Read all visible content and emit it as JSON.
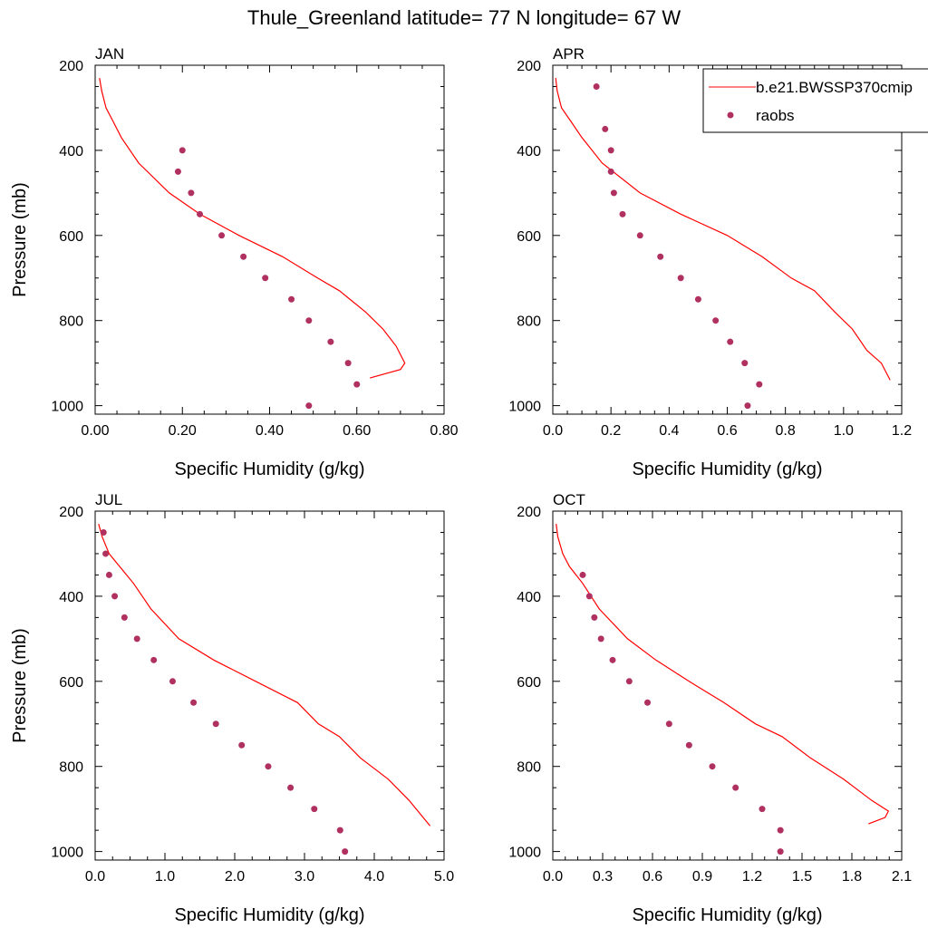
{
  "title": "Thule_Greenland  latitude= 77 N longitude= 67 W",
  "legend": {
    "line_label": "b.e21.BWSSP370cmip",
    "dot_label": "raobs"
  },
  "colors": {
    "line": "#ff0000",
    "dots": "#b03060",
    "axis": "#000000"
  },
  "chart_data": [
    {
      "type": "line",
      "panel": "JAN",
      "xlabel": "Specific Humidity (g/kg)",
      "ylabel": "Pressure (mb)",
      "xlim": [
        0,
        0.8
      ],
      "ylim": [
        1000,
        200
      ],
      "xticks": [
        "0.00",
        "0.20",
        "0.40",
        "0.60",
        "0.80"
      ],
      "yticks": [
        "200",
        "400",
        "600",
        "800",
        "1000"
      ],
      "series": [
        {
          "name": "b.e21.BWSSP370cmip",
          "x": [
            0.01,
            0.015,
            0.025,
            0.04,
            0.06,
            0.1,
            0.17,
            0.24,
            0.33,
            0.43,
            0.51,
            0.56,
            0.62,
            0.66,
            0.69,
            0.71,
            0.7,
            0.63
          ],
          "y": [
            230,
            260,
            300,
            330,
            370,
            430,
            500,
            550,
            600,
            650,
            700,
            730,
            780,
            820,
            860,
            900,
            915,
            935
          ]
        },
        {
          "name": "raobs",
          "x": [
            0.2,
            0.19,
            0.22,
            0.24,
            0.29,
            0.34,
            0.39,
            0.45,
            0.49,
            0.54,
            0.58,
            0.6,
            0.49
          ],
          "y": [
            400,
            450,
            500,
            550,
            600,
            650,
            700,
            750,
            800,
            850,
            900,
            950,
            1000
          ]
        }
      ]
    },
    {
      "type": "line",
      "panel": "APR",
      "xlabel": "Specific Humidity (g/kg)",
      "ylabel": "",
      "xlim": [
        0,
        1.2
      ],
      "ylim": [
        1000,
        200
      ],
      "xticks": [
        "0.0",
        "0.2",
        "0.4",
        "0.6",
        "0.8",
        "1.0",
        "1.2"
      ],
      "yticks": [
        "200",
        "400",
        "600",
        "800",
        "1000"
      ],
      "series": [
        {
          "name": "b.e21.BWSSP370cmip",
          "x": [
            0.01,
            0.015,
            0.03,
            0.06,
            0.1,
            0.17,
            0.3,
            0.44,
            0.6,
            0.72,
            0.82,
            0.9,
            0.97,
            1.03,
            1.08,
            1.13,
            1.16
          ],
          "y": [
            230,
            260,
            300,
            330,
            370,
            430,
            500,
            550,
            600,
            650,
            700,
            730,
            780,
            820,
            870,
            900,
            940
          ]
        },
        {
          "name": "raobs",
          "x": [
            0.15,
            0.18,
            0.2,
            0.2,
            0.21,
            0.24,
            0.3,
            0.37,
            0.44,
            0.5,
            0.56,
            0.61,
            0.66,
            0.71,
            0.67
          ],
          "y": [
            250,
            350,
            400,
            450,
            500,
            550,
            600,
            650,
            700,
            750,
            800,
            850,
            900,
            950,
            1000
          ]
        }
      ]
    },
    {
      "type": "line",
      "panel": "JUL",
      "xlabel": "Specific Humidity (g/kg)",
      "ylabel": "Pressure (mb)",
      "xlim": [
        0,
        5
      ],
      "ylim": [
        1000,
        200
      ],
      "xticks": [
        "0.0",
        "1.0",
        "2.0",
        "3.0",
        "4.0",
        "5.0"
      ],
      "yticks": [
        "200",
        "400",
        "600",
        "800",
        "1000"
      ],
      "series": [
        {
          "name": "b.e21.BWSSP370cmip",
          "x": [
            0.05,
            0.1,
            0.2,
            0.35,
            0.55,
            0.8,
            1.2,
            1.7,
            2.3,
            2.9,
            3.2,
            3.5,
            3.8,
            4.2,
            4.5,
            4.8
          ],
          "y": [
            230,
            260,
            300,
            330,
            370,
            430,
            500,
            550,
            600,
            650,
            700,
            730,
            780,
            830,
            880,
            940
          ]
        },
        {
          "name": "raobs",
          "x": [
            0.12,
            0.15,
            0.2,
            0.28,
            0.42,
            0.6,
            0.84,
            1.11,
            1.41,
            1.73,
            2.1,
            2.48,
            2.8,
            3.14,
            3.51,
            3.58
          ],
          "y": [
            250,
            300,
            350,
            400,
            450,
            500,
            550,
            600,
            650,
            700,
            750,
            800,
            850,
            900,
            950,
            1000
          ]
        }
      ]
    },
    {
      "type": "line",
      "panel": "OCT",
      "xlabel": "Specific Humidity (g/kg)",
      "ylabel": "",
      "xlim": [
        0,
        2.1
      ],
      "ylim": [
        1000,
        200
      ],
      "xticks": [
        "0.0",
        "0.3",
        "0.6",
        "0.9",
        "1.2",
        "1.5",
        "1.8",
        "2.1"
      ],
      "yticks": [
        "200",
        "400",
        "600",
        "800",
        "1000"
      ],
      "series": [
        {
          "name": "b.e21.BWSSP370cmip",
          "x": [
            0.02,
            0.03,
            0.06,
            0.1,
            0.18,
            0.28,
            0.45,
            0.62,
            0.82,
            1.03,
            1.22,
            1.38,
            1.55,
            1.75,
            1.92,
            2.02,
            2.0,
            1.9
          ],
          "y": [
            230,
            260,
            300,
            330,
            370,
            430,
            500,
            550,
            600,
            650,
            700,
            730,
            780,
            830,
            880,
            905,
            920,
            935
          ]
        },
        {
          "name": "raobs",
          "x": [
            0.18,
            0.22,
            0.25,
            0.29,
            0.36,
            0.46,
            0.57,
            0.7,
            0.82,
            0.96,
            1.1,
            1.26,
            1.37,
            1.37
          ],
          "y": [
            350,
            400,
            450,
            500,
            550,
            600,
            650,
            700,
            750,
            800,
            850,
            900,
            950,
            1000
          ]
        }
      ]
    }
  ]
}
